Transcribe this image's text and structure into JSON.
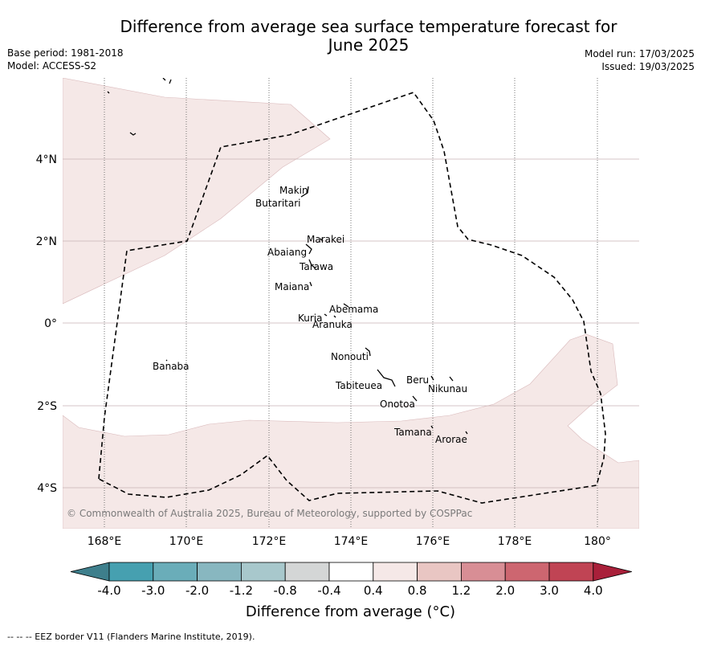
{
  "title_lines": [
    "Difference from average sea surface temperature forecast for",
    "June 2025"
  ],
  "meta_left": [
    "Base period: 1981-2018",
    "Model: ACCESS-S2"
  ],
  "meta_right": [
    "Model run: 17/03/2025",
    "Issued: 19/03/2025"
  ],
  "copyright": "© Commonwealth of Australia 2025, Bureau of Meteorology, supported by COSPPac",
  "lon_ticks": [
    "168°E",
    "170°E",
    "172°E",
    "174°E",
    "176°E",
    "178°E",
    "180°"
  ],
  "lat_ticks": [
    "4°N",
    "2°N",
    "0°",
    "2°S",
    "4°S"
  ],
  "islands": [
    "Makin",
    "Butaritari",
    "Marakei",
    "Abaiang",
    "Tarawa",
    "Maiana",
    "Abemama",
    "Kuria",
    "Aranuka",
    "Banaba",
    "Nonouti",
    "Tabiteuea",
    "Beru",
    "Nikunau",
    "Onotoa",
    "Tamana",
    "Arorae"
  ],
  "colorbar": {
    "labels": [
      "-4.0",
      "-3.0",
      "-2.0",
      "-1.2",
      "-0.8",
      "-0.4",
      "0.4",
      "0.8",
      "1.2",
      "2.0",
      "3.0",
      "4.0"
    ],
    "colors": [
      "#3e7f8c",
      "#46a0b0",
      "#6aadb9",
      "#88b7c0",
      "#a8c8cc",
      "#d4d6d6",
      "#ffffff",
      "#f5e8e7",
      "#e9c6c3",
      "#d88e95",
      "#cd6670",
      "#c04454",
      "#a9203a"
    ],
    "title": "Difference from average (°C)"
  },
  "anomaly_fill_color": "#f5e8e7",
  "eez_note": "-- -- -- EEZ border V11 (Flanders Marine Institute, 2019)."
}
